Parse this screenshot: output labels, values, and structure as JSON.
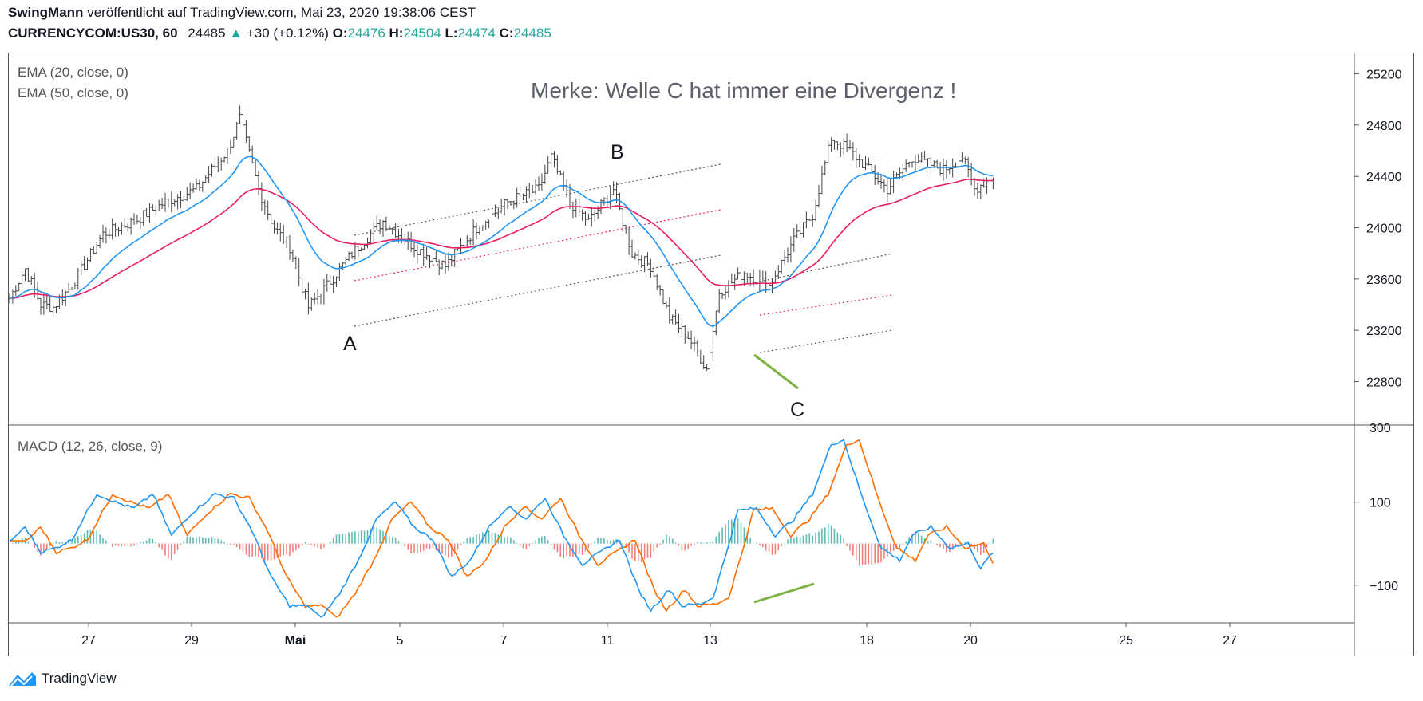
{
  "header": {
    "author": "SwingMann",
    "published_text": "veröffentlicht auf TradingView.com, Mai 23, 2020 19:38:06 CEST",
    "symbol": "CURRENCYCOM:US30, 60",
    "last_price": "24485",
    "change": "+30 (+0.12%)",
    "open_label": "O:",
    "open": "24476",
    "high_label": "H:",
    "high": "24504",
    "low_label": "L:",
    "low": "24474",
    "close_label": "C:",
    "close": "24485"
  },
  "colors": {
    "bull": "#26a69a",
    "bear": "#ef5350",
    "ema20": "#2196f3",
    "ema50": "#e91e63",
    "macd": "#2196f3",
    "signal": "#ff6d00",
    "green_line": "#7cb342",
    "channel": "#555555"
  },
  "annotations": {
    "note": "Merke: Welle C hat immer eine Divergenz !",
    "wave_a": "A",
    "wave_b": "B",
    "wave_c": "C"
  },
  "footer": {
    "brand": "TradingView"
  },
  "chart_data": [
    {
      "type": "candlestick",
      "title": "",
      "indicators": [
        "EMA (20, close, 0)",
        "EMA (50, close, 0)"
      ],
      "y_ticks": [
        22800,
        23200,
        23600,
        24000,
        24400,
        24800,
        25200
      ],
      "ylim": [
        22480,
        25340
      ],
      "x_ticks": [
        "27",
        "29",
        "Mai",
        "5",
        "7",
        "11",
        "13",
        "18",
        "20",
        "25",
        "27"
      ],
      "close_path": [
        {
          "x": 0,
          "y": 23450
        },
        {
          "x": 5,
          "y": 23680
        },
        {
          "x": 10,
          "y": 23400
        },
        {
          "x": 14,
          "y": 23380
        },
        {
          "x": 20,
          "y": 23550
        },
        {
          "x": 30,
          "y": 23950
        },
        {
          "x": 40,
          "y": 24050
        },
        {
          "x": 50,
          "y": 24200
        },
        {
          "x": 60,
          "y": 24300
        },
        {
          "x": 70,
          "y": 24600
        },
        {
          "x": 74,
          "y": 24850
        },
        {
          "x": 80,
          "y": 24300
        },
        {
          "x": 85,
          "y": 24000
        },
        {
          "x": 90,
          "y": 23850
        },
        {
          "x": 96,
          "y": 23380
        },
        {
          "x": 102,
          "y": 23550
        },
        {
          "x": 110,
          "y": 23800
        },
        {
          "x": 120,
          "y": 24050
        },
        {
          "x": 130,
          "y": 23850
        },
        {
          "x": 140,
          "y": 23700
        },
        {
          "x": 150,
          "y": 24000
        },
        {
          "x": 160,
          "y": 24200
        },
        {
          "x": 170,
          "y": 24300
        },
        {
          "x": 174,
          "y": 24550
        },
        {
          "x": 180,
          "y": 24200
        },
        {
          "x": 186,
          "y": 24050
        },
        {
          "x": 194,
          "y": 24300
        },
        {
          "x": 200,
          "y": 23800
        },
        {
          "x": 206,
          "y": 23700
        },
        {
          "x": 212,
          "y": 23300
        },
        {
          "x": 218,
          "y": 23150
        },
        {
          "x": 224,
          "y": 22900
        },
        {
          "x": 228,
          "y": 23500
        },
        {
          "x": 236,
          "y": 23650
        },
        {
          "x": 244,
          "y": 23550
        },
        {
          "x": 252,
          "y": 23900
        },
        {
          "x": 258,
          "y": 24100
        },
        {
          "x": 264,
          "y": 24700
        },
        {
          "x": 270,
          "y": 24600
        },
        {
          "x": 276,
          "y": 24450
        },
        {
          "x": 282,
          "y": 24300
        },
        {
          "x": 290,
          "y": 24550
        },
        {
          "x": 300,
          "y": 24450
        },
        {
          "x": 306,
          "y": 24550
        },
        {
          "x": 310,
          "y": 24300
        },
        {
          "x": 316,
          "y": 24400
        }
      ]
    },
    {
      "type": "macd",
      "title": "MACD (12, 26, close, 9)",
      "y_ticks": [
        -100,
        100
      ],
      "y_ticks_partial": [
        300
      ],
      "ylim": [
        -185,
        280
      ],
      "macd_path": [
        {
          "x": 0,
          "y": 5
        },
        {
          "x": 5,
          "y": 40
        },
        {
          "x": 10,
          "y": -20
        },
        {
          "x": 15,
          "y": -10
        },
        {
          "x": 20,
          "y": 10
        },
        {
          "x": 28,
          "y": 120
        },
        {
          "x": 34,
          "y": 100
        },
        {
          "x": 40,
          "y": 85
        },
        {
          "x": 46,
          "y": 120
        },
        {
          "x": 52,
          "y": 20
        },
        {
          "x": 58,
          "y": 70
        },
        {
          "x": 66,
          "y": 120
        },
        {
          "x": 72,
          "y": 110
        },
        {
          "x": 78,
          "y": 30
        },
        {
          "x": 84,
          "y": -80
        },
        {
          "x": 90,
          "y": -150
        },
        {
          "x": 96,
          "y": -150
        },
        {
          "x": 100,
          "y": -180
        },
        {
          "x": 106,
          "y": -120
        },
        {
          "x": 112,
          "y": -40
        },
        {
          "x": 118,
          "y": 60
        },
        {
          "x": 124,
          "y": 100
        },
        {
          "x": 130,
          "y": 40
        },
        {
          "x": 136,
          "y": 10
        },
        {
          "x": 142,
          "y": -80
        },
        {
          "x": 148,
          "y": -40
        },
        {
          "x": 154,
          "y": 40
        },
        {
          "x": 160,
          "y": 90
        },
        {
          "x": 166,
          "y": 60
        },
        {
          "x": 172,
          "y": 110
        },
        {
          "x": 178,
          "y": 20
        },
        {
          "x": 184,
          "y": -50
        },
        {
          "x": 190,
          "y": -20
        },
        {
          "x": 196,
          "y": 10
        },
        {
          "x": 202,
          "y": -110
        },
        {
          "x": 206,
          "y": -160
        },
        {
          "x": 212,
          "y": -110
        },
        {
          "x": 216,
          "y": -150
        },
        {
          "x": 222,
          "y": -145
        },
        {
          "x": 226,
          "y": -130
        },
        {
          "x": 230,
          "y": -30
        },
        {
          "x": 234,
          "y": 80
        },
        {
          "x": 240,
          "y": 85
        },
        {
          "x": 246,
          "y": 20
        },
        {
          "x": 252,
          "y": 60
        },
        {
          "x": 258,
          "y": 120
        },
        {
          "x": 264,
          "y": 240
        },
        {
          "x": 268,
          "y": 250
        },
        {
          "x": 274,
          "y": 110
        },
        {
          "x": 280,
          "y": -10
        },
        {
          "x": 286,
          "y": -40
        },
        {
          "x": 290,
          "y": 20
        },
        {
          "x": 296,
          "y": 40
        },
        {
          "x": 302,
          "y": -10
        },
        {
          "x": 308,
          "y": 0
        },
        {
          "x": 312,
          "y": -60
        },
        {
          "x": 316,
          "y": -20
        }
      ],
      "signal_lag": 5
    }
  ]
}
